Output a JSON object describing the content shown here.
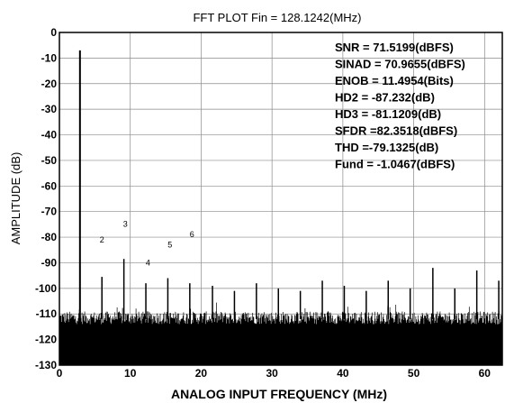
{
  "chart_data": {
    "type": "line",
    "title": "FFT PLOT    Fin = 128.1242(MHz)",
    "xlabel": "ANALOG INPUT FREQUENCY (MHz)",
    "ylabel": "AMPLITUDE (dB)",
    "xlim": [
      0,
      62.5
    ],
    "ylim": [
      -130,
      0
    ],
    "x_ticks": [
      0,
      10,
      20,
      30,
      40,
      50,
      60
    ],
    "y_ticks": [
      0,
      -10,
      -20,
      -30,
      -40,
      -50,
      -60,
      -70,
      -80,
      -90,
      -100,
      -110,
      -120,
      -130
    ],
    "grid": true,
    "noise_floor": {
      "top_min": -114,
      "top_max": -109,
      "bottom": -130
    },
    "series": [
      {
        "x": [
          2.9,
          6.0,
          9.1,
          12.2,
          15.3,
          18.4,
          21.6,
          24.7,
          27.8,
          30.9,
          34.0,
          37.1,
          40.2,
          43.3,
          46.4,
          49.5,
          52.7,
          55.8,
          58.9,
          62.0
        ],
        "y": [
          -7,
          -95.5,
          -88.5,
          -98,
          -96,
          -98,
          -99,
          -101,
          -98,
          -100,
          -101,
          -97,
          -99,
          -101,
          -97,
          -100,
          -92,
          -100,
          -93,
          -97
        ]
      }
    ],
    "harmonic_markers": [
      {
        "label": "2",
        "x": 6.0,
        "y": -82
      },
      {
        "label": "3",
        "x": 9.3,
        "y": -76
      },
      {
        "label": "4",
        "x": 12.5,
        "y": -91
      },
      {
        "label": "5",
        "x": 15.6,
        "y": -84
      },
      {
        "label": "6",
        "x": 18.7,
        "y": -80
      }
    ],
    "annotations": [
      "SNR = 71.5199(dBFS)",
      "SINAD = 70.9655(dBFS)",
      "ENOB = 11.4954(Bits)",
      "HD2 = -87.232(dB)",
      "HD3 = -81.1209(dB)",
      "SFDR =82.3518(dBFS)",
      "THD =-79.1325(dB)",
      "Fund = -1.0467(dBFS)"
    ]
  }
}
